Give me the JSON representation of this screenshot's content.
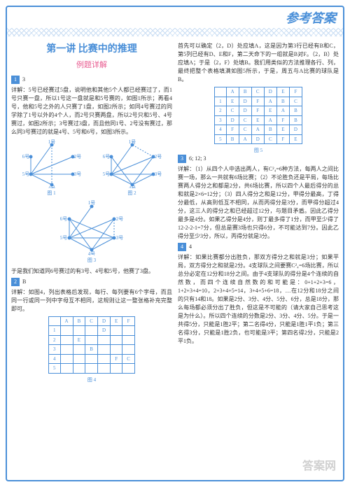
{
  "header": {
    "title": "参考答案"
  },
  "lesson": {
    "title": "第一讲 比赛中的推理",
    "subtitle": "例题详解"
  },
  "sections": [
    {
      "num": "1",
      "answer": "3",
      "text": "详解：5号已经赛过5盘，说明他和其他5个人都已经赛过了，而1号只赛一盘，所以1号这一盘就是和5号赛的，如图1所示；再看4号，他和5号之外的人只赛了1盘，如图2所示；如同4号赛过的同学除了1号以外的4个人，而2号只赛两盘，所以2号只和5号、4号赛过，如图2所示；3号赛过3盘，而且他同1号、2号没有赛过，那么同3号赛过的就是4号、5号和6号，如图3所示。"
    },
    {
      "num": "2",
      "answer": "B",
      "text": "于是我们知道同6号赛过的有3号、4号和5号，他赛了3盘。",
      "text2": "详解：如图4，列出表格后发现，每行、每列要有6个字母，而且同一行或同一列中字母互不相同，这规则让这一整张格补充完整即可。"
    }
  ],
  "right_text": {
    "p1": "首先可以确定（2，D）处应填A，这是因为第3行已经有B和C，第5列已经有D、E和F，第二天命下的一组就是B对F。（2，B）处应填A；于是（2，F）处填B。我们用类似的方法推理各行、列，最终把整个表格填满如图5所示，于是，周五与A比赛的球队是B。",
    "p2_num": "3",
    "p2_ans": "6; 12; 3",
    "p2": "详解：（1）从四个人中选出两人，有C²₄=6种方法，每两人之间比赛一场，那么一共就有6场比赛；（2）不论胜负还是平局，每场比赛两人得分之和都是2分，共6场比赛，所以四个人最后得分的总和就是2×6=12分；（3）四人得分之和是12分，甲得分最高，丁得分最低，从高到低互不相同，从而丙得分是3分，而甲得分超过4分，这三人的得分之和已经超过12分，与题目矛盾。因此乙得分最多是4分。如果乙得分是4分，则丁最多得了1分，而甲至少得了12-2-2-1=7分，但总是赛3场也只得6分，不可能达到7分。因此乙得分至少3分，所以，丙得分就是3分。",
    "p3_num": "4",
    "p3_ans": "4",
    "p3": "详解：如果比赛都分出胜负，那双方得分之和就是3分；如果平局，双方得分之和就是2分。4支球队之间要赛C²₄=6场比赛，所以总分必定在12分和18分之间。由于4支球队的得分是4个连续的自然数，而四个连续自然数的和可能是：0+1+2+3=6，1+2+3+4=10，2+3+4+5=14，3+4+5+6=18，…在12分和18分之间的只有14和18。如果是2分、3分、4分、5分、6分，总是18分，那么每场都必须分出了胜负，但这是不可能的（请大家自己思考这是为什么）。所以四个连续的分数是2分、3分、4分、5分。于是一共得5分，只能是1胜2平；第二名得4分，只能是1胜1平1负；第三名得3分，只能是1胜2负，也可能是3平；第四名得2分，只能是2平1负。"
  },
  "graphs": {
    "labels": [
      "1号",
      "2号",
      "3号",
      "4号",
      "5号",
      "6号"
    ],
    "captions": [
      "图 1",
      "图 2",
      "图 3",
      "图 4",
      "图 5"
    ],
    "node_color": "#4a8fd8",
    "edge_solid": "#4a8fd8",
    "edge_dashed": "#4a8fd8"
  },
  "table1": {
    "headers": [
      "",
      "A",
      "B",
      "C",
      "D",
      "E",
      "F"
    ],
    "rows": [
      [
        "1",
        "",
        "",
        "",
        "D",
        "",
        ""
      ],
      [
        "2",
        "",
        "E",
        "",
        "",
        "",
        ""
      ],
      [
        "3",
        "",
        "",
        "B",
        "",
        "",
        ""
      ],
      [
        "4",
        "",
        "",
        "",
        "",
        "F",
        "C"
      ],
      [
        "5",
        "",
        "",
        "",
        "",
        "",
        ""
      ]
    ]
  },
  "table2": {
    "headers": [
      "",
      "A",
      "B",
      "C",
      "D",
      "E",
      "F"
    ],
    "rows": [
      [
        "1",
        "E",
        "D",
        "F",
        "A",
        "B",
        "C"
      ],
      [
        "2",
        "C",
        "D",
        "F",
        "E",
        "A",
        "B"
      ],
      [
        "3",
        "D",
        "C",
        "E",
        "A",
        "F",
        "B"
      ],
      [
        "4",
        "F",
        "C",
        "A",
        "B",
        "E",
        "D"
      ],
      [
        "5",
        "B",
        "A",
        "D",
        "C",
        "F",
        "E"
      ]
    ]
  },
  "watermark": "答案网",
  "colors": {
    "primary": "#4a8fd8",
    "accent": "#e85a8f",
    "text": "#333333"
  }
}
